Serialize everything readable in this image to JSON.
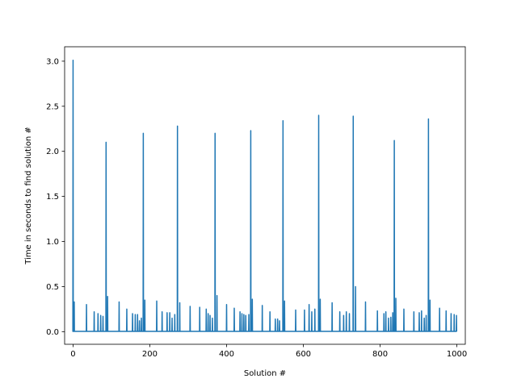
{
  "chart_data": {
    "type": "line",
    "title": "",
    "xlabel": "Solution #",
    "ylabel": "Time in seconds to find solution #",
    "xlim": [
      -22,
      1022
    ],
    "ylim": [
      -0.14,
      3.16
    ],
    "xticks": [
      0,
      200,
      400,
      600,
      800,
      1000
    ],
    "yticks": [
      0.0,
      0.5,
      1.0,
      1.5,
      2.0,
      2.5,
      3.0
    ],
    "xtick_labels": [
      "0",
      "200",
      "400",
      "600",
      "800",
      "1000"
    ],
    "ytick_labels": [
      "0.0",
      "0.5",
      "1.0",
      "1.5",
      "2.0",
      "2.5",
      "3.0"
    ],
    "grid": false,
    "baseline": 0.003,
    "series": [
      {
        "color": "#1f77b4",
        "spikes": [
          [
            0,
            3.01
          ],
          [
            3,
            0.33
          ],
          [
            35,
            0.3
          ],
          [
            55,
            0.22
          ],
          [
            65,
            0.2
          ],
          [
            72,
            0.18
          ],
          [
            78,
            0.17
          ],
          [
            86,
            2.1
          ],
          [
            90,
            0.39
          ],
          [
            120,
            0.33
          ],
          [
            140,
            0.25
          ],
          [
            155,
            0.2
          ],
          [
            162,
            0.19
          ],
          [
            168,
            0.19
          ],
          [
            173,
            0.12
          ],
          [
            178,
            0.15
          ],
          [
            183,
            2.2
          ],
          [
            187,
            0.35
          ],
          [
            218,
            0.34
          ],
          [
            232,
            0.22
          ],
          [
            245,
            0.21
          ],
          [
            252,
            0.21
          ],
          [
            258,
            0.15
          ],
          [
            265,
            0.19
          ],
          [
            272,
            2.28
          ],
          [
            278,
            0.32
          ],
          [
            305,
            0.28
          ],
          [
            330,
            0.27
          ],
          [
            347,
            0.25
          ],
          [
            352,
            0.2
          ],
          [
            357,
            0.18
          ],
          [
            363,
            0.15
          ],
          [
            370,
            2.2
          ],
          [
            375,
            0.4
          ],
          [
            400,
            0.3
          ],
          [
            420,
            0.26
          ],
          [
            435,
            0.22
          ],
          [
            440,
            0.2
          ],
          [
            445,
            0.19
          ],
          [
            450,
            0.18
          ],
          [
            458,
            0.19
          ],
          [
            463,
            2.23
          ],
          [
            467,
            0.36
          ],
          [
            493,
            0.29
          ],
          [
            513,
            0.22
          ],
          [
            527,
            0.14
          ],
          [
            533,
            0.14
          ],
          [
            538,
            0.12
          ],
          [
            547,
            2.34
          ],
          [
            551,
            0.34
          ],
          [
            580,
            0.24
          ],
          [
            603,
            0.24
          ],
          [
            615,
            0.3
          ],
          [
            622,
            0.22
          ],
          [
            630,
            0.25
          ],
          [
            640,
            2.4
          ],
          [
            644,
            0.36
          ],
          [
            675,
            0.32
          ],
          [
            695,
            0.22
          ],
          [
            705,
            0.18
          ],
          [
            712,
            0.22
          ],
          [
            720,
            0.2
          ],
          [
            730,
            2.39
          ],
          [
            736,
            0.5
          ],
          [
            762,
            0.33
          ],
          [
            793,
            0.23
          ],
          [
            810,
            0.2
          ],
          [
            815,
            0.22
          ],
          [
            822,
            0.15
          ],
          [
            828,
            0.16
          ],
          [
            833,
            0.21
          ],
          [
            837,
            2.12
          ],
          [
            841,
            0.37
          ],
          [
            862,
            0.25
          ],
          [
            888,
            0.22
          ],
          [
            902,
            0.21
          ],
          [
            908,
            0.23
          ],
          [
            915,
            0.15
          ],
          [
            920,
            0.18
          ],
          [
            926,
            2.36
          ],
          [
            930,
            0.35
          ],
          [
            955,
            0.26
          ],
          [
            972,
            0.23
          ],
          [
            985,
            0.2
          ],
          [
            993,
            0.19
          ],
          [
            999,
            0.18
          ]
        ]
      }
    ]
  }
}
